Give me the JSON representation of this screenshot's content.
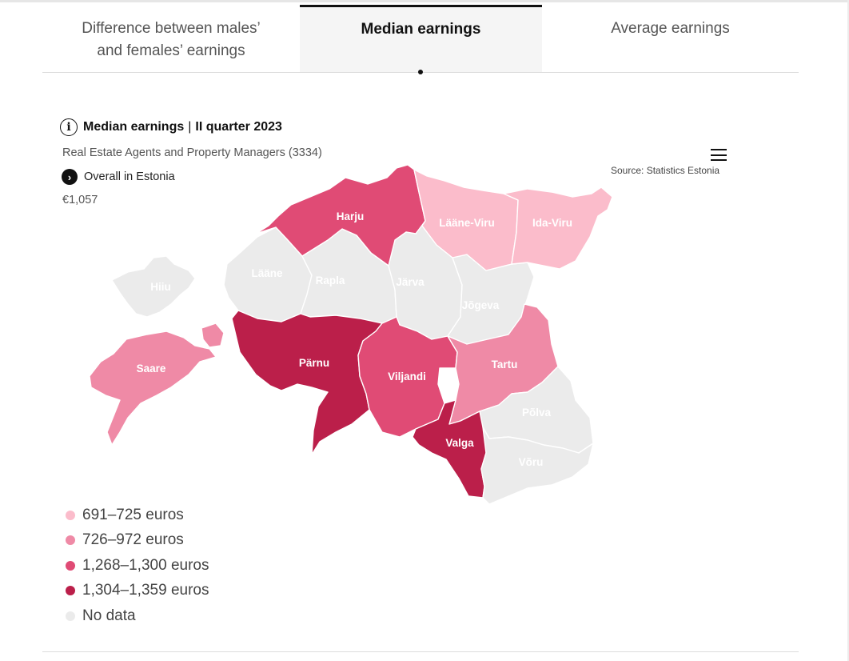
{
  "tabs": [
    {
      "label_line1": "Difference between males’",
      "label_line2": "and females’ earnings"
    },
    {
      "label": "Median earnings"
    },
    {
      "label": "Average earnings"
    }
  ],
  "header": {
    "title": "Median earnings",
    "separator": "|",
    "period": "II quarter 2023",
    "subtitle": "Real Estate Agents and Property Managers (3334)",
    "overall_label": "Overall in Estonia",
    "overall_value": "€1,057",
    "source": "Source: Statistics Estonia"
  },
  "icons": {
    "info": "info-icon",
    "overall": "chevron-right-icon",
    "menu": "hamburger-menu-icon"
  },
  "colors": {
    "tier_1": "#fbbccb",
    "tier_2": "#ef8aa6",
    "tier_3": "#e04b75",
    "tier_4": "#bb1f4a",
    "no_data": "#ebebeb"
  },
  "legend": [
    {
      "label": "691–725 euros",
      "tier": "tier_1"
    },
    {
      "label": "726–972 euros",
      "tier": "tier_2"
    },
    {
      "label": "1,268–1,300 euros",
      "tier": "tier_3"
    },
    {
      "label": "1,304–1,359 euros",
      "tier": "tier_4"
    },
    {
      "label": "No data",
      "tier": "no_data"
    }
  ],
  "regions": [
    {
      "name": "Harju",
      "tier": "tier_3"
    },
    {
      "name": "Lääne-Viru",
      "tier": "tier_1"
    },
    {
      "name": "Ida-Viru",
      "tier": "tier_1"
    },
    {
      "name": "Hiiu",
      "tier": "no_data"
    },
    {
      "name": "Lääne",
      "tier": "no_data"
    },
    {
      "name": "Rapla",
      "tier": "no_data"
    },
    {
      "name": "Järva",
      "tier": "no_data"
    },
    {
      "name": "Jõgeva",
      "tier": "no_data"
    },
    {
      "name": "Saare",
      "tier": "tier_2"
    },
    {
      "name": "Pärnu",
      "tier": "tier_4"
    },
    {
      "name": "Viljandi",
      "tier": "tier_3"
    },
    {
      "name": "Tartu",
      "tier": "tier_2"
    },
    {
      "name": "Põlva",
      "tier": "no_data"
    },
    {
      "name": "Valga",
      "tier": "tier_4"
    },
    {
      "name": "Võru",
      "tier": "no_data"
    }
  ]
}
